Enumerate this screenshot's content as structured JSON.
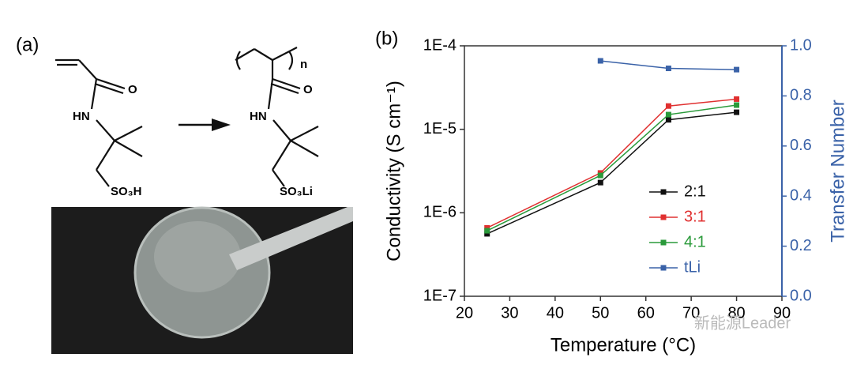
{
  "panel_a": {
    "label": "(a)",
    "monomer": {
      "carbonyl": "O",
      "amine": "HN",
      "acid": "SO₃H"
    },
    "polymer": {
      "repeat": "n",
      "carbonyl": "O",
      "amine": "HN",
      "salt": "SO₃Li"
    }
  },
  "chart_data": {
    "type": "line",
    "panel_label": "(b)",
    "x_label": "Temperature (°C)",
    "y_label": "Conductivity (S cm⁻¹)",
    "y2_label": "Transfer Number",
    "x": [
      25,
      50,
      65,
      80
    ],
    "xlim": [
      20,
      90
    ],
    "xticks": [
      20,
      30,
      40,
      50,
      60,
      70,
      80,
      90
    ],
    "ylim": [
      1e-07,
      0.0001
    ],
    "ylog": true,
    "yticks": [
      {
        "value": 1e-07,
        "label": "1E-7"
      },
      {
        "value": 1e-06,
        "label": "1E-6"
      },
      {
        "value": 1e-05,
        "label": "1E-5"
      },
      {
        "value": 0.0001,
        "label": "1E-4"
      }
    ],
    "y2lim": [
      0,
      1
    ],
    "y2color": "#3a62a8",
    "y2ticks": [
      {
        "value": 0,
        "label": "0.0"
      },
      0.2,
      0.4,
      0.6,
      0.8,
      {
        "value": 1,
        "label": "1.0"
      }
    ],
    "series": [
      {
        "name": "2:1",
        "color": "#111111",
        "values": [
          5.6e-07,
          2.3e-06,
          1.3e-05,
          1.6e-05
        ]
      },
      {
        "name": "3:1",
        "color": "#e03030",
        "values": [
          6.6e-07,
          3e-06,
          1.9e-05,
          2.3e-05
        ]
      },
      {
        "name": "4:1",
        "color": "#2a9a3a",
        "values": [
          6.1e-07,
          2.8e-06,
          1.5e-05,
          1.95e-05
        ]
      },
      {
        "name": "tLi",
        "color": "#3a62a8",
        "axis": "y2",
        "values": [
          null,
          0.94,
          0.91,
          0.905
        ]
      }
    ]
  },
  "watermark": "新能源Leader"
}
